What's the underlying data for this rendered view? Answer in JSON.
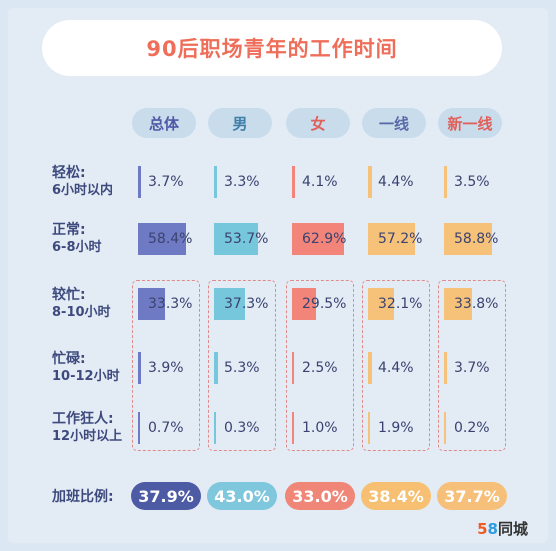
{
  "title": "90后职场青年的工作时间",
  "colors": {
    "bg": "#dbe7f2",
    "title": "#ee6e59",
    "label": "#3e4a7e"
  },
  "chart_data": {
    "type": "table",
    "title": "90后职场青年的工作时间",
    "groups": [
      {
        "label": "总体",
        "text_color": "#4f5aa6",
        "bar_color": "#6f7ac4",
        "pill_color": "#4d5aa4",
        "pill_text": "#ffffff"
      },
      {
        "label": "男",
        "text_color": "#3f7fa8",
        "bar_color": "#76c6dc",
        "pill_color": "#7ec7dd",
        "pill_text": "#ffffff"
      },
      {
        "label": "女",
        "text_color": "#e0605a",
        "bar_color": "#f2847a",
        "pill_color": "#f08678",
        "pill_text": "#ffffff"
      },
      {
        "label": "一线",
        "text_color": "#5a6aa8",
        "bar_color": "#f6c27a",
        "pill_color": "#f6bf72",
        "pill_text": "#ffffff"
      },
      {
        "label": "新一线",
        "text_color": "#e0605a",
        "bar_color": "#f6c27a",
        "pill_color": "#f6c07a",
        "pill_text": "#ffffff"
      }
    ],
    "rows": [
      {
        "label": "轻松:",
        "sub": "6小时以内",
        "values": [
          3.7,
          3.3,
          4.1,
          4.4,
          3.5
        ],
        "display": [
          "3.7%",
          "3.3%",
          "4.1%",
          "4.4%",
          "3.5%"
        ]
      },
      {
        "label": "正常:",
        "sub": "6-8小时",
        "values": [
          58.4,
          53.7,
          62.9,
          57.2,
          58.8
        ],
        "display": [
          "58.4%",
          "53.7%",
          "62.9%",
          "57.2%",
          "58.8%"
        ]
      },
      {
        "label": "较忙:",
        "sub": "8-10小时",
        "values": [
          33.3,
          37.3,
          29.5,
          32.1,
          33.8
        ],
        "display": [
          "33.3%",
          "37.3%",
          "29.5%",
          "32.1%",
          "33.8%"
        ]
      },
      {
        "label": "忙碌:",
        "sub": "10-12小时",
        "values": [
          3.9,
          5.3,
          2.5,
          4.4,
          3.7
        ],
        "display": [
          "3.9%",
          "5.3%",
          "2.5%",
          "4.4%",
          "3.7%"
        ]
      },
      {
        "label": "工作狂人:",
        "sub": "12小时以上",
        "values": [
          0.7,
          0.3,
          1.0,
          1.9,
          0.2
        ],
        "display": [
          "0.7%",
          "0.3%",
          "1.0%",
          "1.9%",
          "0.2%"
        ]
      }
    ],
    "overtime": {
      "label": "加班比例:",
      "values": [
        37.9,
        43.0,
        33.0,
        38.4,
        37.7
      ],
      "display": [
        "37.9%",
        "43.0%",
        "33.0%",
        "38.4%",
        "37.7%"
      ]
    }
  },
  "logo": {
    "digit5": "5",
    "digit8": "8",
    "text": "同城"
  }
}
